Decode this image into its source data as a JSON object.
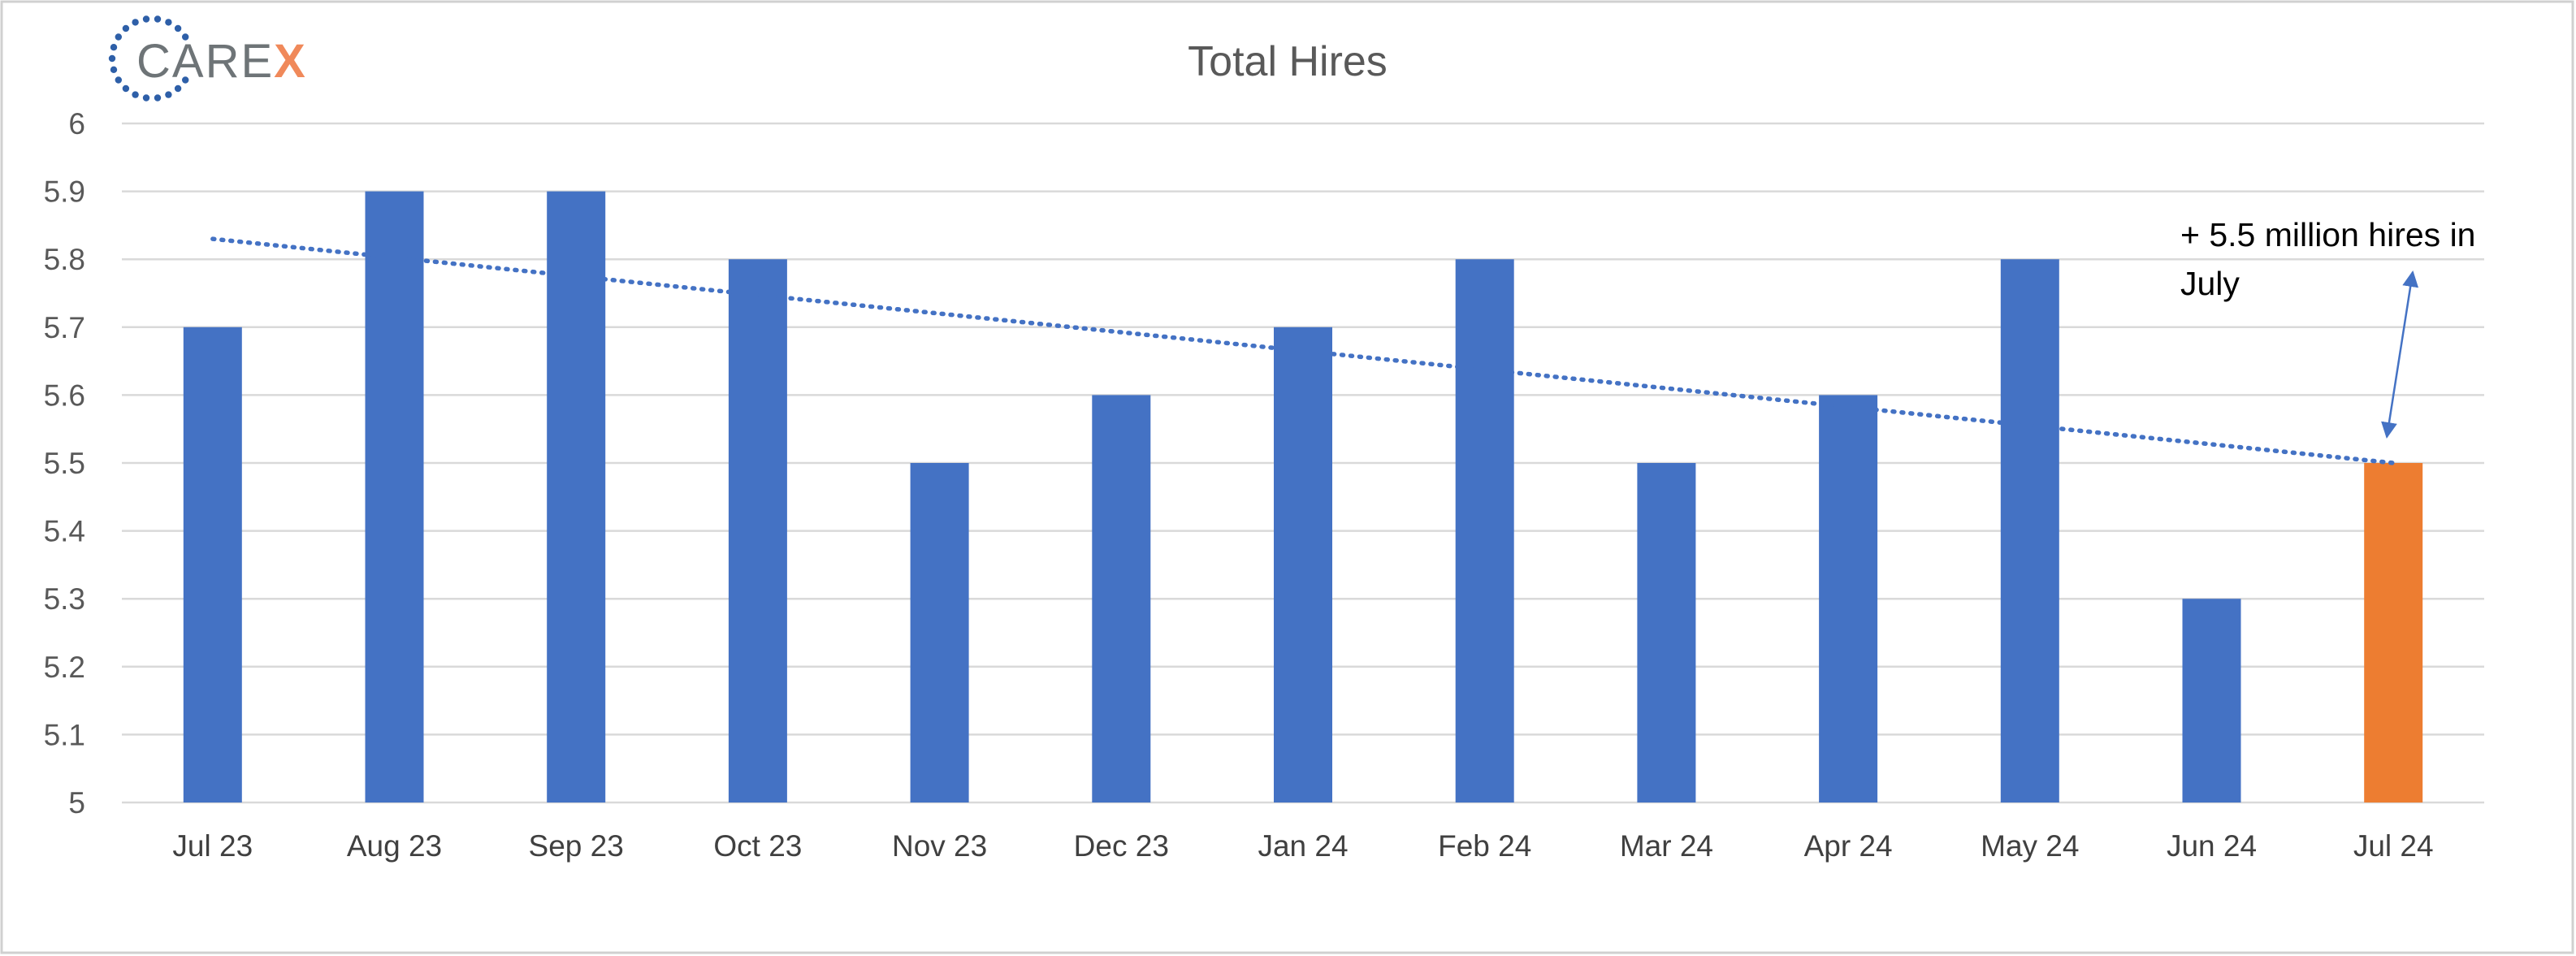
{
  "logo": {
    "text_main": "CARE",
    "text_accent": "X",
    "color_main": "#6E7477",
    "color_accent": "#F0895A",
    "ring_color": "#2E5FA8"
  },
  "chart_data": {
    "type": "bar",
    "title": "Total Hires",
    "xlabel": "",
    "ylabel": "",
    "categories": [
      "Jul 23",
      "Aug 23",
      "Sep 23",
      "Oct 23",
      "Nov 23",
      "Dec 23",
      "Jan 24",
      "Feb 24",
      "Mar 24",
      "Apr 24",
      "May 24",
      "Jun 24",
      "Jul 24"
    ],
    "values": [
      5.7,
      5.9,
      5.9,
      5.8,
      5.5,
      5.6,
      5.7,
      5.8,
      5.5,
      5.6,
      5.8,
      5.3,
      5.5
    ],
    "ylim": [
      5,
      6
    ],
    "yticks": [
      "5",
      "5.1",
      "5.2",
      "5.3",
      "5.4",
      "5.5",
      "5.6",
      "5.7",
      "5.8",
      "5.9",
      "6"
    ],
    "grid": true,
    "bar_color": "#4472C4",
    "highlight_color": "#ED7D31",
    "highlight_index": 12,
    "trendline": {
      "style": "dotted",
      "color": "#4472C4",
      "start": 5.83,
      "end": 5.5
    },
    "annotation": {
      "text_line1": "+ 5.5 million hires in",
      "text_line2": "July",
      "target_index": 12
    }
  }
}
